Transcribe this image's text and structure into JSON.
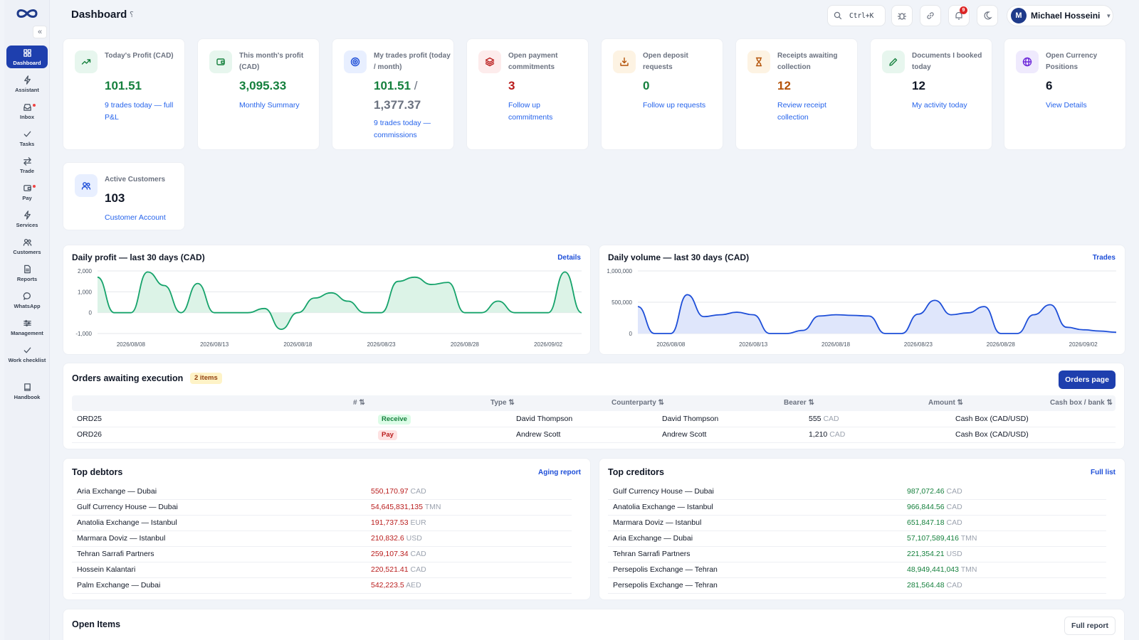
{
  "header": {
    "title": "Dashboard",
    "search_shortcut": "Ctrl+K",
    "notif_count": "9",
    "user_initial": "M",
    "user_name": "Michael Hosseini"
  },
  "sidebar": {
    "items": [
      {
        "label": "Dashboard",
        "icon": "grid-icon"
      },
      {
        "label": "Assistant",
        "icon": "bolt-icon"
      },
      {
        "label": "Inbox",
        "icon": "inbox-icon"
      },
      {
        "label": "Tasks",
        "icon": "check-icon"
      },
      {
        "label": "Trade",
        "icon": "swap-icon"
      },
      {
        "label": "Pay",
        "icon": "wallet-icon"
      },
      {
        "label": "Services",
        "icon": "bolt-icon"
      },
      {
        "label": "Customers",
        "icon": "users-icon"
      },
      {
        "label": "Reports",
        "icon": "file-icon"
      },
      {
        "label": "WhatsApp",
        "icon": "chat-icon"
      },
      {
        "label": "Management",
        "icon": "sliders-icon"
      },
      {
        "label": "Work checklist",
        "icon": "check-icon"
      },
      {
        "label": "Handbook",
        "icon": "book-icon"
      }
    ]
  },
  "stats": [
    {
      "title": "Today's Profit (CAD)",
      "value": "101.51",
      "link": "9 trades today — full P&L",
      "value_color": "#15803d",
      "icon": "trend-up-icon",
      "icon_bg": "#e7f6ee",
      "icon_color": "#15803d"
    },
    {
      "title": "This month's profit (CAD)",
      "value": "3,095.33",
      "link": "Monthly Summary",
      "value_color": "#15803d",
      "icon": "wallet-icon",
      "icon_bg": "#e7f6ee",
      "icon_color": "#15803d"
    },
    {
      "title": "My trades profit (today / month)",
      "value": "101.51 / 1,377.37",
      "value_main": "101.51",
      "value_sep": "/",
      "value_sub": "1,377.37",
      "link": "9 trades today — commissions",
      "value_color": "#15803d",
      "icon": "target-icon",
      "icon_bg": "#e8efff",
      "icon_color": "#1d4ed8"
    },
    {
      "title": "Open payment commitments",
      "value": "3",
      "link": "Follow up commitments",
      "value_color": "#b91c1c",
      "icon": "layers-icon",
      "icon_bg": "#fdecec",
      "icon_color": "#b91c1c"
    },
    {
      "title": "Open deposit requests",
      "value": "0",
      "link": "Follow up requests",
      "value_color": "#15803d",
      "icon": "download-icon",
      "icon_bg": "#fdf3e3",
      "icon_color": "#b45309"
    },
    {
      "title": "Receipts awaiting collection",
      "value": "12",
      "link": "Review receipt collection",
      "value_color": "#b45309",
      "icon": "hourglass-icon",
      "icon_bg": "#fdf3e3",
      "icon_color": "#b45309"
    },
    {
      "title": "Documents I booked today",
      "value": "12",
      "link": "My activity today",
      "value_color": "#111827",
      "icon": "pencil-icon",
      "icon_bg": "#e7f6ee",
      "icon_color": "#15803d"
    },
    {
      "title": "Open Currency Positions",
      "value": "6",
      "link": "View Details",
      "value_color": "#111827",
      "icon": "globe-icon",
      "icon_bg": "#efeafd",
      "icon_color": "#6d28d9"
    },
    {
      "title": "Active Customers",
      "value": "103",
      "link": "Customer Account",
      "value_color": "#111827",
      "icon": "users-icon",
      "icon_bg": "#e8efff",
      "icon_color": "#1d4ed8"
    }
  ],
  "charts": [
    {
      "title": "Daily profit — last 30 days (CAD)",
      "link": "Details",
      "chart_data": {
        "type": "area",
        "x": [
          "2026/08/06",
          "2026/08/07",
          "2026/08/08",
          "2026/08/09",
          "2026/08/10",
          "2026/08/11",
          "2026/08/12",
          "2026/08/13",
          "2026/08/14",
          "2026/08/15",
          "2026/08/16",
          "2026/08/17",
          "2026/08/18",
          "2026/08/19",
          "2026/08/20",
          "2026/08/21",
          "2026/08/22",
          "2026/08/23",
          "2026/08/24",
          "2026/08/25",
          "2026/08/26",
          "2026/08/27",
          "2026/08/28",
          "2026/08/29",
          "2026/08/30",
          "2026/08/31",
          "2026/09/01",
          "2026/09/02",
          "2026/09/03",
          "2026/09/04"
        ],
        "values": [
          1700,
          0,
          0,
          1950,
          1300,
          0,
          1400,
          0,
          0,
          0,
          200,
          -800,
          0,
          700,
          950,
          550,
          0,
          0,
          1500,
          1700,
          1350,
          1450,
          0,
          0,
          550,
          0,
          0,
          0,
          1950,
          0
        ],
        "xticks": [
          "2026/08/08",
          "2026/08/13",
          "2026/08/18",
          "2026/08/23",
          "2026/08/28",
          "2026/09/02"
        ],
        "yticks": [
          "2,000",
          "1,000",
          "0",
          "-1,000"
        ],
        "ylim": [
          -1000,
          2000
        ],
        "color": "#16a36b",
        "fill": "#dcf3e7"
      }
    },
    {
      "title": "Daily volume — last 30 days (CAD)",
      "link": "Trades",
      "chart_data": {
        "type": "area",
        "x": [
          "2026/08/06",
          "2026/08/07",
          "2026/08/08",
          "2026/08/09",
          "2026/08/10",
          "2026/08/11",
          "2026/08/12",
          "2026/08/13",
          "2026/08/14",
          "2026/08/15",
          "2026/08/16",
          "2026/08/17",
          "2026/08/18",
          "2026/08/19",
          "2026/08/20",
          "2026/08/21",
          "2026/08/22",
          "2026/08/23",
          "2026/08/24",
          "2026/08/25",
          "2026/08/26",
          "2026/08/27",
          "2026/08/28",
          "2026/08/29",
          "2026/08/30",
          "2026/08/31",
          "2026/09/01",
          "2026/09/02",
          "2026/09/03",
          "2026/09/04"
        ],
        "values": [
          430000,
          0,
          0,
          620000,
          270000,
          300000,
          340000,
          300000,
          0,
          0,
          50000,
          280000,
          300000,
          290000,
          280000,
          0,
          0,
          310000,
          530000,
          300000,
          330000,
          430000,
          0,
          0,
          300000,
          460000,
          100000,
          60000,
          40000,
          20000
        ],
        "xticks": [
          "2026/08/08",
          "2026/08/13",
          "2026/08/18",
          "2026/08/23",
          "2026/08/28",
          "2026/09/02"
        ],
        "yticks": [
          "1,000,000",
          "500,000",
          "0"
        ],
        "ylim": [
          0,
          1000000
        ],
        "color": "#1d4ed8",
        "fill": "#dfe6fb"
      }
    }
  ],
  "orders": {
    "title": "Orders awaiting execution",
    "badge": "2 items",
    "button": "Orders page",
    "columns": [
      "# ⇅",
      "Type ⇅",
      "Counterparty ⇅",
      "Bearer ⇅",
      "Amount ⇅",
      "Cash box / bank ⇅"
    ],
    "rows": [
      {
        "id": "ORD25",
        "type": "Receive",
        "counterparty": "David Thompson",
        "bearer": "David Thompson",
        "amount": "555",
        "currency": "CAD",
        "cashbox": "Cash Box (CAD/USD)"
      },
      {
        "id": "ORD26",
        "type": "Pay",
        "counterparty": "Andrew Scott",
        "bearer": "Andrew Scott",
        "amount": "1,210",
        "currency": "CAD",
        "cashbox": "Cash Box (CAD/USD)"
      }
    ]
  },
  "debtors": {
    "title": "Top debtors",
    "link": "Aging report",
    "rows": [
      {
        "name": "Aria Exchange — Dubai",
        "amount": "550,170.97",
        "currency": "CAD"
      },
      {
        "name": "Gulf Currency House — Dubai",
        "amount": "54,645,831,135",
        "currency": "TMN"
      },
      {
        "name": "Anatolia Exchange — Istanbul",
        "amount": "191,737.53",
        "currency": "EUR"
      },
      {
        "name": "Marmara Doviz — Istanbul",
        "amount": "210,832.6",
        "currency": "USD"
      },
      {
        "name": "Tehran Sarrafi Partners",
        "amount": "259,107.34",
        "currency": "CAD"
      },
      {
        "name": "Hossein Kalantari",
        "amount": "220,521.41",
        "currency": "CAD"
      },
      {
        "name": "Palm Exchange — Dubai",
        "amount": "542,223.5",
        "currency": "AED"
      }
    ]
  },
  "creditors": {
    "title": "Top creditors",
    "link": "Full list",
    "rows": [
      {
        "name": "Gulf Currency House — Dubai",
        "amount": "987,072.46",
        "currency": "CAD"
      },
      {
        "name": "Anatolia Exchange — Istanbul",
        "amount": "966,844.56",
        "currency": "CAD"
      },
      {
        "name": "Marmara Doviz — Istanbul",
        "amount": "651,847.18",
        "currency": "CAD"
      },
      {
        "name": "Aria Exchange — Dubai",
        "amount": "57,107,589,416",
        "currency": "TMN"
      },
      {
        "name": "Tehran Sarrafi Partners",
        "amount": "221,354.21",
        "currency": "USD"
      },
      {
        "name": "Persepolis Exchange — Tehran",
        "amount": "48,949,441,043",
        "currency": "TMN"
      },
      {
        "name": "Persepolis Exchange — Tehran",
        "amount": "281,564.48",
        "currency": "CAD"
      }
    ]
  },
  "open_items": {
    "title": "Open Items",
    "button": "Full report"
  }
}
